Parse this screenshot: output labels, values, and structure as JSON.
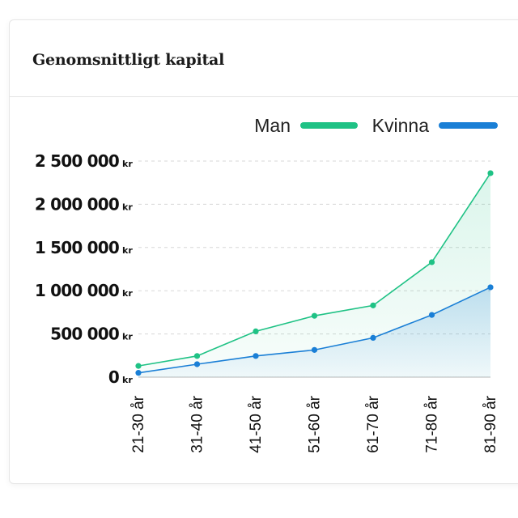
{
  "card": {
    "title": "Genomsnittligt kapital"
  },
  "chart_data": {
    "type": "area",
    "title": "Genomsnittligt kapital",
    "xlabel": "",
    "ylabel": "",
    "categories": [
      "21-30 år",
      "31-40 år",
      "41-50 år",
      "51-60 år",
      "61-70 år",
      "71-80 år",
      "81-90 år"
    ],
    "series": [
      {
        "name": "Man",
        "color": "#1fc285",
        "values": [
          130000,
          245000,
          530000,
          710000,
          830000,
          1330000,
          2360000
        ]
      },
      {
        "name": "Kvinna",
        "color": "#1a7fd6",
        "values": [
          50000,
          150000,
          245000,
          315000,
          455000,
          720000,
          1040000
        ]
      }
    ],
    "ylim": [
      0,
      2500000
    ],
    "yticks": [
      0,
      500000,
      1000000,
      1500000,
      2000000,
      2500000
    ],
    "ytick_labels": [
      "0",
      "500 000",
      "1 000 000",
      "1 500 000",
      "2 000 000",
      "2 500 000"
    ],
    "ytick_unit": "kr",
    "grid": true,
    "legend": "top-right"
  }
}
